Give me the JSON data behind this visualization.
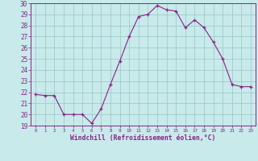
{
  "x": [
    0,
    1,
    2,
    3,
    4,
    5,
    6,
    7,
    8,
    9,
    10,
    11,
    12,
    13,
    14,
    15,
    16,
    17,
    18,
    19,
    20,
    21,
    22,
    23
  ],
  "y": [
    21.8,
    21.7,
    21.7,
    20.0,
    20.0,
    20.0,
    19.2,
    20.5,
    22.7,
    24.8,
    27.0,
    28.8,
    29.0,
    29.8,
    29.4,
    29.3,
    27.8,
    28.5,
    27.8,
    26.5,
    25.0,
    22.7,
    22.5,
    22.5
  ],
  "line_color": "#882288",
  "marker": "+",
  "bg_color": "#c8eaea",
  "grid_color": "#a0cccc",
  "xlabel": "Windchill (Refroidissement éolien,°C)",
  "ylim": [
    19,
    30
  ],
  "xlim_min": -0.5,
  "xlim_max": 23.5,
  "yticks": [
    19,
    20,
    21,
    22,
    23,
    24,
    25,
    26,
    27,
    28,
    29,
    30
  ],
  "xticks": [
    0,
    1,
    2,
    3,
    4,
    5,
    6,
    7,
    8,
    9,
    10,
    11,
    12,
    13,
    14,
    15,
    16,
    17,
    18,
    19,
    20,
    21,
    22,
    23
  ],
  "color": "#882288"
}
